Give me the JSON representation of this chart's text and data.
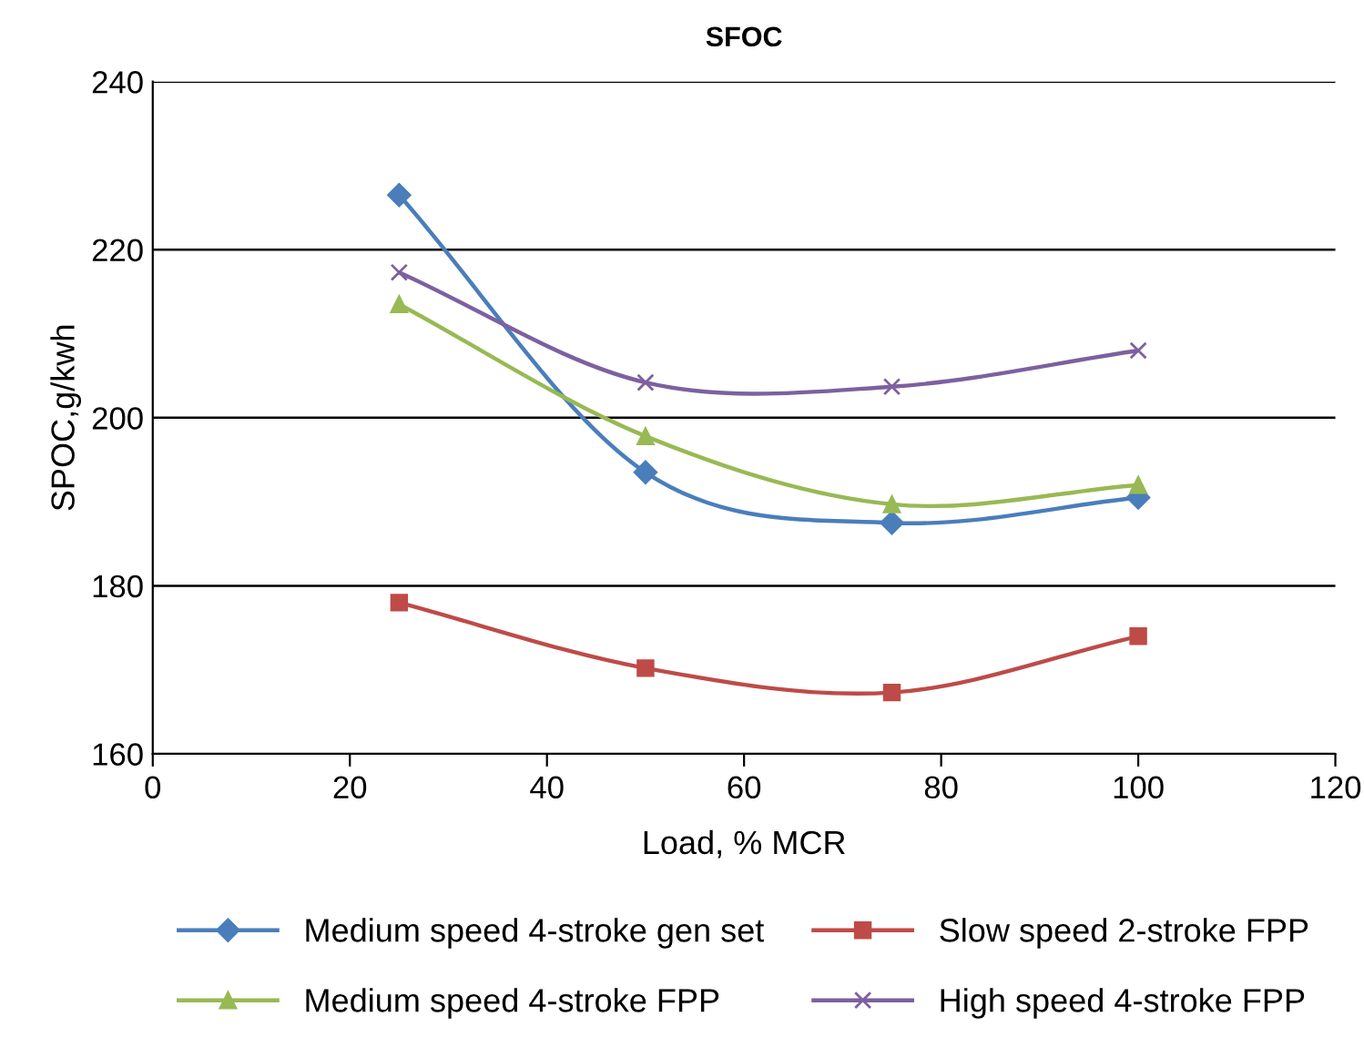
{
  "chart_data": {
    "type": "line",
    "title": "SFOC",
    "xlabel": "Load, % MCR",
    "ylabel": "SPOC,g/kwh",
    "x": [
      25,
      50,
      75,
      100
    ],
    "xlim": [
      0,
      120
    ],
    "xticks": [
      0,
      20,
      40,
      60,
      80,
      100,
      120
    ],
    "ylim": [
      160,
      240
    ],
    "yticks": [
      160,
      180,
      200,
      220,
      240
    ],
    "grid": "y",
    "legend": "bottom",
    "series": [
      {
        "name": "Medium speed 4-stroke gen set",
        "color": "#4a7ebb",
        "marker": "diamond",
        "values": [
          226.5,
          193.5,
          187.5,
          190.5
        ]
      },
      {
        "name": "Slow speed 2-stroke FPP",
        "color": "#be4b48",
        "marker": "square",
        "values": [
          178,
          170.2,
          167.3,
          174
        ]
      },
      {
        "name": "Medium speed 4-stroke FPP",
        "color": "#98b954",
        "marker": "triangle",
        "values": [
          213.5,
          197.8,
          189.7,
          192
        ]
      },
      {
        "name": "High speed 4-stroke FPP",
        "color": "#7d60a0",
        "marker": "cross",
        "values": [
          217.3,
          204.2,
          203.7,
          208
        ]
      }
    ]
  }
}
